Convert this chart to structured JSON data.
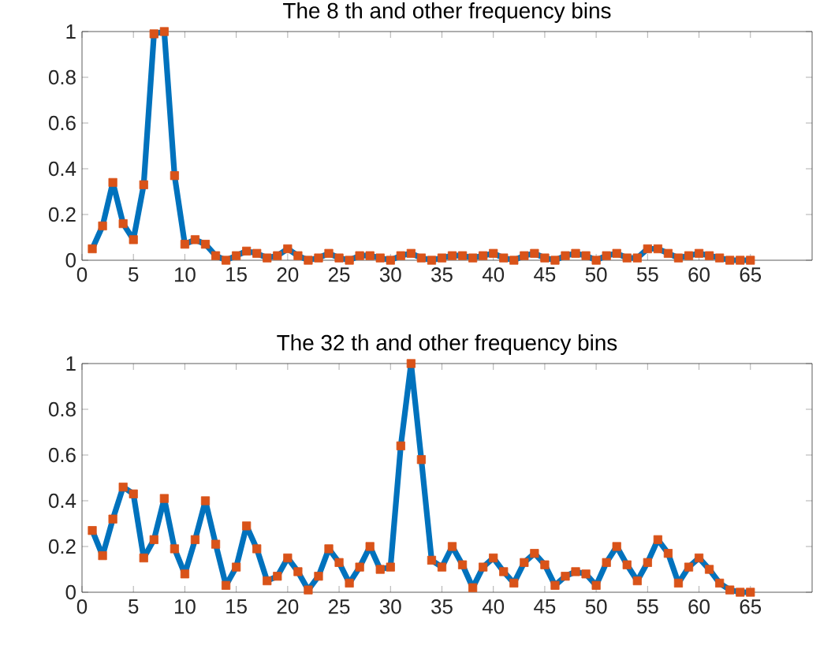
{
  "chart_data": [
    {
      "type": "line",
      "title": "The 8 th and other frequency bins",
      "x": [
        1,
        2,
        3,
        4,
        5,
        6,
        7,
        8,
        9,
        10,
        11,
        12,
        13,
        14,
        15,
        16,
        17,
        18,
        19,
        20,
        21,
        22,
        23,
        24,
        25,
        26,
        27,
        28,
        29,
        30,
        31,
        32,
        33,
        34,
        35,
        36,
        37,
        38,
        39,
        40,
        41,
        42,
        43,
        44,
        45,
        46,
        47,
        48,
        49,
        50,
        51,
        52,
        53,
        54,
        55,
        56,
        57,
        58,
        59,
        60,
        61,
        62,
        63,
        64,
        65
      ],
      "series": [
        {
          "color": "#0072bd",
          "values": [
            0.05,
            0.15,
            0.34,
            0.16,
            0.09,
            0.33,
            0.99,
            1.0,
            0.37,
            0.07,
            0.09,
            0.07,
            0.02,
            0.0,
            0.02,
            0.04,
            0.03,
            0.01,
            0.02,
            0.05,
            0.02,
            0.0,
            0.01,
            0.03,
            0.01,
            0.0,
            0.02,
            0.02,
            0.01,
            0.0,
            0.02,
            0.03,
            0.01,
            0.0,
            0.01,
            0.02,
            0.02,
            0.01,
            0.02,
            0.03,
            0.01,
            0.0,
            0.02,
            0.03,
            0.01,
            0.0,
            0.02,
            0.03,
            0.02,
            0.0,
            0.02,
            0.03,
            0.01,
            0.01,
            0.05,
            0.05,
            0.03,
            0.01,
            0.02,
            0.03,
            0.02,
            0.01,
            0.0,
            0.0,
            0.0
          ]
        },
        {
          "type": "scatter",
          "color": "#d95319",
          "marker": "square",
          "values": [
            0.05,
            0.15,
            0.34,
            0.16,
            0.09,
            0.33,
            0.99,
            1.0,
            0.37,
            0.07,
            0.09,
            0.07,
            0.02,
            0.0,
            0.02,
            0.04,
            0.03,
            0.01,
            0.02,
            0.05,
            0.02,
            0.0,
            0.01,
            0.03,
            0.01,
            0.0,
            0.02,
            0.02,
            0.01,
            0.0,
            0.02,
            0.03,
            0.01,
            0.0,
            0.01,
            0.02,
            0.02,
            0.01,
            0.02,
            0.03,
            0.01,
            0.0,
            0.02,
            0.03,
            0.01,
            0.0,
            0.02,
            0.03,
            0.02,
            0.0,
            0.02,
            0.03,
            0.01,
            0.01,
            0.05,
            0.05,
            0.03,
            0.01,
            0.02,
            0.03,
            0.02,
            0.01,
            0.0,
            0.0,
            0.0
          ]
        }
      ],
      "xlim": [
        0,
        71
      ],
      "xticks": [
        0,
        5,
        10,
        15,
        20,
        25,
        30,
        35,
        40,
        45,
        50,
        55,
        60,
        65
      ],
      "ylim": [
        0,
        1
      ],
      "yticks": [
        0,
        0.2,
        0.4,
        0.6,
        0.8,
        1
      ],
      "grid": false
    },
    {
      "type": "line",
      "title": "The 32 th and other frequency bins",
      "x": [
        1,
        2,
        3,
        4,
        5,
        6,
        7,
        8,
        9,
        10,
        11,
        12,
        13,
        14,
        15,
        16,
        17,
        18,
        19,
        20,
        21,
        22,
        23,
        24,
        25,
        26,
        27,
        28,
        29,
        30,
        31,
        32,
        33,
        34,
        35,
        36,
        37,
        38,
        39,
        40,
        41,
        42,
        43,
        44,
        45,
        46,
        47,
        48,
        49,
        50,
        51,
        52,
        53,
        54,
        55,
        56,
        57,
        58,
        59,
        60,
        61,
        62,
        63,
        64,
        65
      ],
      "series": [
        {
          "color": "#0072bd",
          "values": [
            0.27,
            0.16,
            0.32,
            0.46,
            0.43,
            0.15,
            0.23,
            0.41,
            0.19,
            0.08,
            0.23,
            0.4,
            0.21,
            0.03,
            0.11,
            0.29,
            0.19,
            0.05,
            0.07,
            0.15,
            0.09,
            0.01,
            0.07,
            0.19,
            0.13,
            0.04,
            0.11,
            0.2,
            0.1,
            0.11,
            0.64,
            1.0,
            0.58,
            0.14,
            0.11,
            0.2,
            0.12,
            0.02,
            0.11,
            0.15,
            0.09,
            0.04,
            0.13,
            0.17,
            0.12,
            0.03,
            0.07,
            0.09,
            0.08,
            0.03,
            0.13,
            0.2,
            0.12,
            0.05,
            0.13,
            0.23,
            0.17,
            0.04,
            0.11,
            0.15,
            0.1,
            0.04,
            0.01,
            0.0,
            0.0
          ]
        },
        {
          "type": "scatter",
          "color": "#d95319",
          "marker": "square",
          "values": [
            0.27,
            0.16,
            0.32,
            0.46,
            0.43,
            0.15,
            0.23,
            0.41,
            0.19,
            0.08,
            0.23,
            0.4,
            0.21,
            0.03,
            0.11,
            0.29,
            0.19,
            0.05,
            0.07,
            0.15,
            0.09,
            0.01,
            0.07,
            0.19,
            0.13,
            0.04,
            0.11,
            0.2,
            0.1,
            0.11,
            0.64,
            1.0,
            0.58,
            0.14,
            0.11,
            0.2,
            0.12,
            0.02,
            0.11,
            0.15,
            0.09,
            0.04,
            0.13,
            0.17,
            0.12,
            0.03,
            0.07,
            0.09,
            0.08,
            0.03,
            0.13,
            0.2,
            0.12,
            0.05,
            0.13,
            0.23,
            0.17,
            0.04,
            0.11,
            0.15,
            0.1,
            0.04,
            0.01,
            0.0,
            0.0
          ]
        }
      ],
      "xlim": [
        0,
        71
      ],
      "xticks": [
        0,
        5,
        10,
        15,
        20,
        25,
        30,
        35,
        40,
        45,
        50,
        55,
        60,
        65
      ],
      "ylim": [
        0,
        1
      ],
      "yticks": [
        0,
        0.2,
        0.4,
        0.6,
        0.8,
        1
      ],
      "grid": false
    }
  ]
}
